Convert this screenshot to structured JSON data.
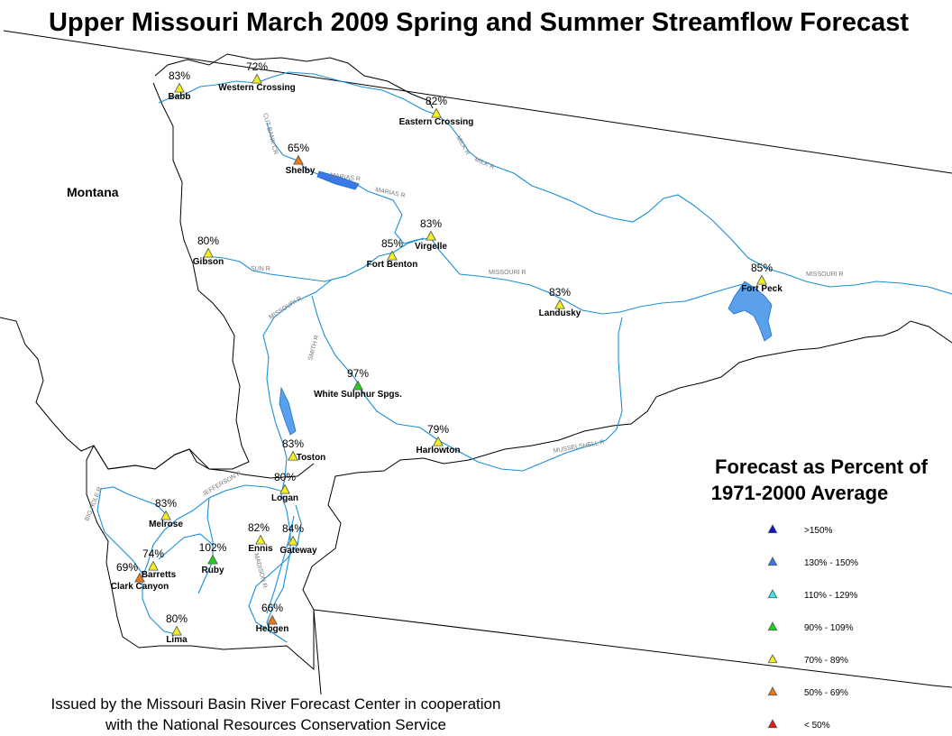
{
  "title": "Upper Missouri March 2009 Spring and Summer Streamflow Forecast",
  "state_label": "Montana",
  "legend": {
    "title_line1": "Forecast as Percent of",
    "title_line2": "1971-2000 Average",
    "items": [
      {
        "label": ">150%",
        "color": "#1010c8"
      },
      {
        "label": "130% - 150%",
        "color": "#3a78e8"
      },
      {
        "label": "110% - 129%",
        "color": "#38e8f0"
      },
      {
        "label": "90% - 109%",
        "color": "#20d020"
      },
      {
        "label": "70% - 89%",
        "color": "#f0f020"
      },
      {
        "label": "50% - 69%",
        "color": "#e87818"
      },
      {
        "label": "< 50%",
        "color": "#e81818"
      }
    ]
  },
  "stations": [
    {
      "name": "Babb",
      "percent": "83%",
      "category": "70% - 89%"
    },
    {
      "name": "Western Crossing",
      "percent": "72%",
      "category": "70% - 89%"
    },
    {
      "name": "Eastern Crossing",
      "percent": "82%",
      "category": "70% - 89%"
    },
    {
      "name": "Shelby",
      "percent": "65%",
      "category": "50% - 69%"
    },
    {
      "name": "Gibson",
      "percent": "80%",
      "category": "70% - 89%"
    },
    {
      "name": "Virgelle",
      "percent": "83%",
      "category": "70% - 89%"
    },
    {
      "name": "Fort Benton",
      "percent": "85%",
      "category": "70% - 89%"
    },
    {
      "name": "Landusky",
      "percent": "83%",
      "category": "70% - 89%"
    },
    {
      "name": "Fort Peck",
      "percent": "85%",
      "category": "70% - 89%"
    },
    {
      "name": "White Sulphur Spgs.",
      "percent": "97%",
      "category": "90% - 109%"
    },
    {
      "name": "Harlowton",
      "percent": "79%",
      "category": "70% - 89%"
    },
    {
      "name": "Toston",
      "percent": "83%",
      "category": "70% - 89%"
    },
    {
      "name": "Logan",
      "percent": "80%",
      "category": "70% - 89%"
    },
    {
      "name": "Melrose",
      "percent": "83%",
      "category": "70% - 89%"
    },
    {
      "name": "Ennis",
      "percent": "82%",
      "category": "70% - 89%"
    },
    {
      "name": "Gateway",
      "percent": "84%",
      "category": "70% - 89%"
    },
    {
      "name": "Barretts",
      "percent": "74%",
      "category": "70% - 89%"
    },
    {
      "name": "Ruby",
      "percent": "102%",
      "category": "90% - 109%"
    },
    {
      "name": "Clark Canyon",
      "percent": "69%",
      "category": "50% - 69%"
    },
    {
      "name": "Hebgen",
      "percent": "66%",
      "category": "50% - 69%"
    },
    {
      "name": "Lima",
      "percent": "80%",
      "category": "70% - 89%"
    }
  ],
  "rivers": {
    "cut_bank": "CUT BANK CR",
    "marias1": "MARIAS R",
    "marias2": "MARIAS R",
    "milk1": "MILK R",
    "milk2": "MILK R",
    "sun": "SUN R",
    "missouri1": "MISSOURI R",
    "missouri2": "MISSOURI R",
    "missouri3": "MISSOURI R",
    "smith": "SMITH R",
    "musselshell": "MUSSELSHELL R",
    "big_hole": "BIG HOLE R",
    "jefferson": "JEFFERSON R",
    "madison": "MADISON R"
  },
  "footer": {
    "line1": "Issued by the Missouri Basin River Forecast Center in cooperation",
    "line2": "with the National Resources Conservation Service"
  }
}
